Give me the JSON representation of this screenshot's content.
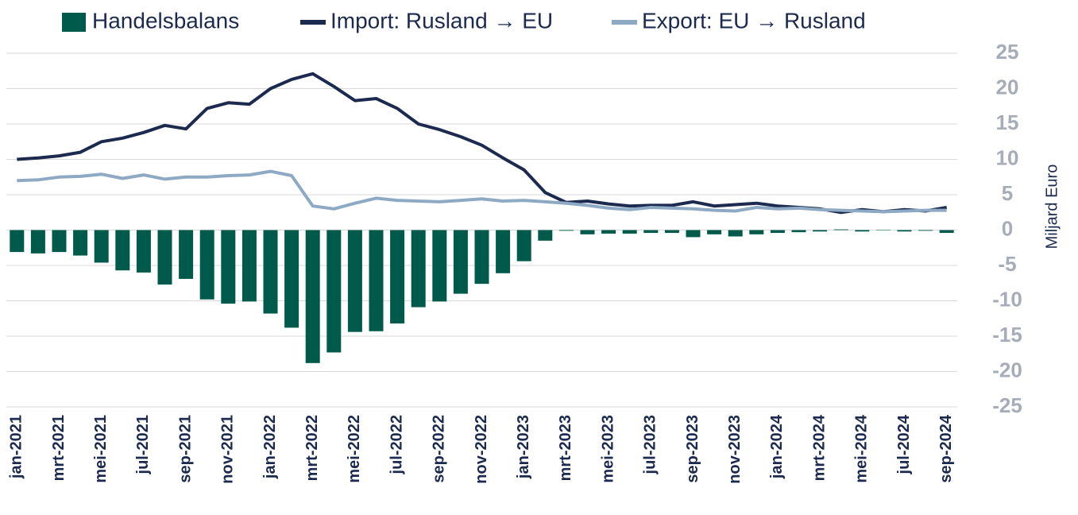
{
  "chart_data": {
    "type": "bar-line",
    "y_axis_label": "Miljard Euro",
    "categories": [
      "jan-2021",
      null,
      "mrt-2021",
      null,
      "mei-2021",
      null,
      "jul-2021",
      null,
      "sep-2021",
      null,
      "nov-2021",
      null,
      "jan-2022",
      null,
      "mrt-2022",
      null,
      "mei-2022",
      null,
      "jul-2022",
      null,
      "sep-2022",
      null,
      "nov-2022",
      null,
      "jan-2023",
      null,
      "mrt-2023",
      null,
      "mei-2023",
      null,
      "jul-2023",
      null,
      "sep-2023",
      null,
      "nov-2023",
      null,
      "jan-2024",
      null,
      "mrt-2024",
      null,
      "mei-2024",
      null,
      "jul-2024",
      null,
      "sep-2024"
    ],
    "series": [
      {
        "name": "Handelsbalans",
        "type": "bar",
        "color": "#005a4b",
        "values": [
          -3.1,
          -3.3,
          -3.1,
          -3.6,
          -4.6,
          -5.7,
          -6,
          -7.7,
          -6.9,
          -9.8,
          -10.4,
          -10.1,
          -11.8,
          -13.8,
          -18.8,
          -17.3,
          -14.4,
          -14.3,
          -13.2,
          -10.9,
          -10.1,
          -9.0,
          -7.6,
          -6.1,
          -4.4,
          -1.5,
          -0.1,
          -0.6,
          -0.5,
          -0.5,
          -0.4,
          -0.4,
          -1.0,
          -0.6,
          -0.9,
          -0.6,
          -0.4,
          -0.3,
          -0.2,
          0.1,
          -0.2,
          0,
          -0.2,
          -0.1,
          -0.4
        ]
      },
      {
        "name": "Import: Rusland → EU",
        "type": "line",
        "color": "#1b2a4e",
        "values": [
          10,
          10.2,
          10.5,
          11,
          12.5,
          13,
          13.8,
          14.8,
          14.3,
          17.2,
          18,
          17.8,
          20,
          21.3,
          22.1,
          20.3,
          18.3,
          18.6,
          17.2,
          15,
          14.2,
          13.2,
          12,
          10.2,
          8.5,
          5.3,
          3.9,
          4.1,
          3.7,
          3.4,
          3.5,
          3.5,
          4,
          3.4,
          3.6,
          3.8,
          3.4,
          3.2,
          3,
          2.5,
          2.9,
          2.6,
          2.9,
          2.7,
          3.2
        ]
      },
      {
        "name": "Export: EU → Rusland",
        "type": "line",
        "color": "#8ea9c4",
        "values": [
          7,
          7.1,
          7.5,
          7.6,
          7.9,
          7.3,
          7.8,
          7.2,
          7.5,
          7.5,
          7.7,
          7.8,
          8.3,
          7.7,
          3.4,
          3.0,
          3.8,
          4.5,
          4.2,
          4.1,
          4.0,
          4.2,
          4.4,
          4.1,
          4.2,
          4.0,
          3.8,
          3.5,
          3.1,
          2.9,
          3.2,
          3.1,
          3.0,
          2.8,
          2.7,
          3.2,
          3.0,
          3.1,
          2.9,
          2.8,
          2.7,
          2.6,
          2.7,
          2.8,
          2.8
        ]
      }
    ],
    "ylim": [
      -25,
      25
    ],
    "yticks": [
      -25,
      -20,
      -15,
      -10,
      -5,
      0,
      5,
      10,
      15,
      20,
      25
    ],
    "grid": true
  }
}
